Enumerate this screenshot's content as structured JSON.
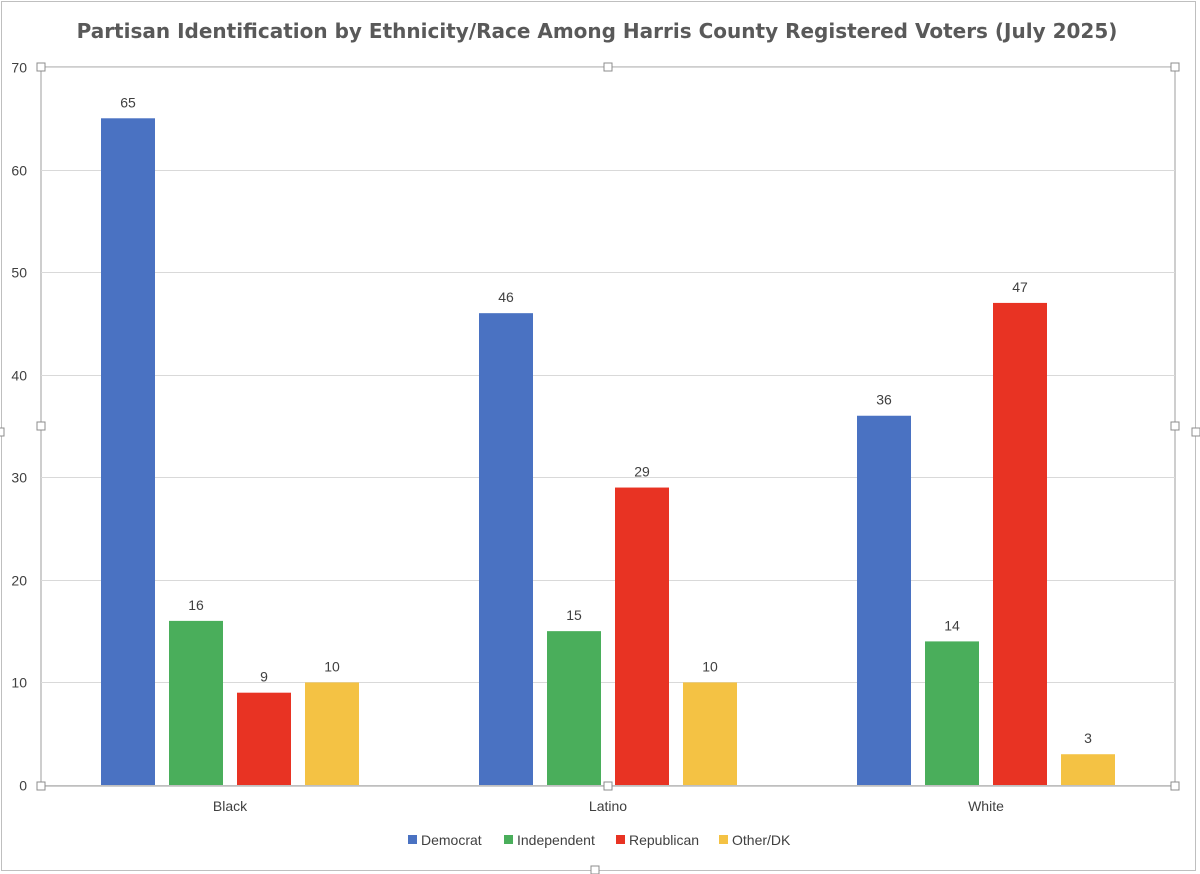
{
  "chart_data": {
    "type": "bar",
    "title": "Partisan Identification by Ethnicity/Race Among Harris County Registered Voters (July 2025)",
    "xlabel": "",
    "ylabel": "",
    "ylim": [
      0,
      70
    ],
    "yticks": [
      0,
      10,
      20,
      30,
      40,
      50,
      60,
      70
    ],
    "grid": true,
    "legend_position": "bottom",
    "categories": [
      "Black",
      "Latino",
      "White"
    ],
    "series": [
      {
        "name": "Democrat",
        "color": "#4a72c2",
        "values": [
          65,
          46,
          36
        ]
      },
      {
        "name": "Independent",
        "color": "#4aae5b",
        "values": [
          16,
          15,
          14
        ]
      },
      {
        "name": "Republican",
        "color": "#e83323",
        "values": [
          9,
          29,
          47
        ]
      },
      {
        "name": "Other/DK",
        "color": "#f4c244",
        "values": [
          10,
          10,
          3
        ]
      }
    ]
  }
}
